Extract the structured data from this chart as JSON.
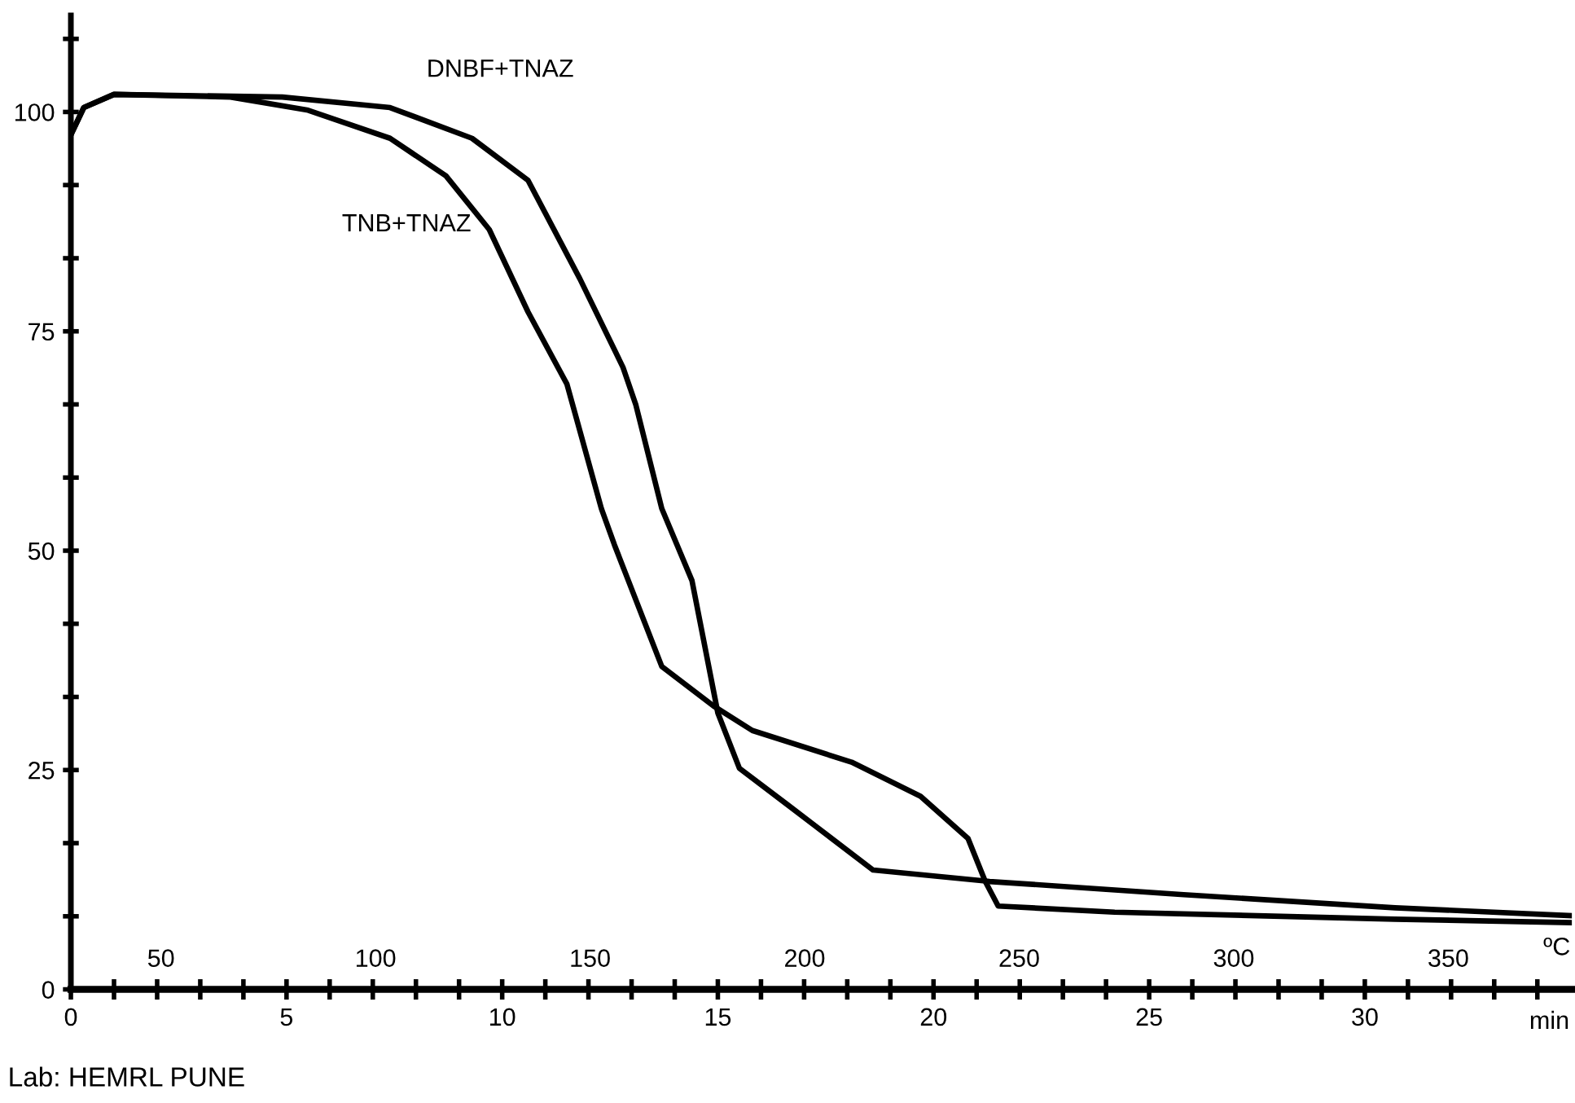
{
  "chart_data": {
    "type": "line",
    "xlabel": "min",
    "x2label": "ºC",
    "xlim": [
      0,
      34.8
    ],
    "x2lim": [
      29,
      378.8
    ],
    "ylim": [
      0,
      111
    ],
    "xticks": [
      0,
      {
        "value": 1,
        "label": null
      },
      {
        "value": 2,
        "label": null
      },
      {
        "value": 3,
        "label": null
      },
      {
        "value": 4,
        "label": null
      },
      5,
      {
        "value": 6,
        "label": null
      },
      {
        "value": 7,
        "label": null
      },
      {
        "value": 8,
        "label": null
      },
      {
        "value": 9,
        "label": null
      },
      10,
      {
        "value": 11,
        "label": null
      },
      {
        "value": 12,
        "label": null
      },
      {
        "value": 13,
        "label": null
      },
      {
        "value": 14,
        "label": null
      },
      15,
      {
        "value": 16,
        "label": null
      },
      {
        "value": 17,
        "label": null
      },
      {
        "value": 18,
        "label": null
      },
      {
        "value": 19,
        "label": null
      },
      20,
      {
        "value": 21,
        "label": null
      },
      {
        "value": 22,
        "label": null
      },
      {
        "value": 23,
        "label": null
      },
      {
        "value": 24,
        "label": null
      },
      25,
      {
        "value": 26,
        "label": null
      },
      {
        "value": 27,
        "label": null
      },
      {
        "value": 28,
        "label": null
      },
      {
        "value": 29,
        "label": null
      },
      30,
      {
        "value": 31,
        "label": null
      },
      {
        "value": 32,
        "label": null
      },
      {
        "value": 33,
        "label": null
      },
      {
        "value": 34,
        "label": null
      }
    ],
    "x2ticks": [
      50,
      100,
      150,
      200,
      250,
      300,
      350
    ],
    "yticks": [
      0,
      {
        "value": 8.33,
        "label": null
      },
      {
        "value": 16.67,
        "label": null
      },
      25,
      {
        "value": 33.33,
        "label": null
      },
      {
        "value": 41.67,
        "label": null
      },
      50,
      {
        "value": 58.33,
        "label": null
      },
      {
        "value": 66.67,
        "label": null
      },
      75,
      {
        "value": 83.33,
        "label": null
      },
      {
        "value": 91.67,
        "label": null
      },
      100,
      {
        "value": 108.33,
        "label": null
      }
    ],
    "grid": false,
    "legend": false,
    "marker": "none",
    "line_style": "solid",
    "series": [
      {
        "name": "DNBF+TNAZ",
        "color": "#000000",
        "x": [
          0,
          0.3,
          1,
          4.9,
          7.4,
          9.3,
          10.6,
          11.8,
          12.8,
          13.1,
          13.7,
          14.4,
          15.0,
          15.5,
          16.6,
          18.6,
          21.3,
          25.8,
          30.7,
          34.8
        ],
        "values": [
          97.4,
          100.5,
          102,
          101.7,
          100.5,
          97,
          92.2,
          81,
          70.9,
          66.6,
          54.8,
          46.6,
          31.5,
          25.2,
          21.1,
          13.6,
          12.3,
          10.8,
          9.3,
          8.4
        ]
      },
      {
        "name": "TNB+TNAZ",
        "color": "#000000",
        "x": [
          0,
          0.3,
          1,
          3.7,
          5.5,
          7.4,
          8.7,
          9.7,
          10.6,
          11.5,
          12.3,
          12.6,
          13.7,
          14.9,
          15.8,
          18.1,
          19.7,
          20.8,
          21.2,
          21.5,
          24.2,
          30.7,
          34.8
        ],
        "values": [
          97.4,
          100.5,
          102,
          101.7,
          100.2,
          97,
          92.7,
          86.6,
          77.2,
          69,
          54.8,
          50.7,
          36.8,
          32.3,
          29.5,
          25.9,
          22,
          17.2,
          12.3,
          9.5,
          8.8,
          8.0,
          7.6
        ]
      }
    ],
    "annotations": [
      "Lab: HEMRL PUNE"
    ]
  }
}
